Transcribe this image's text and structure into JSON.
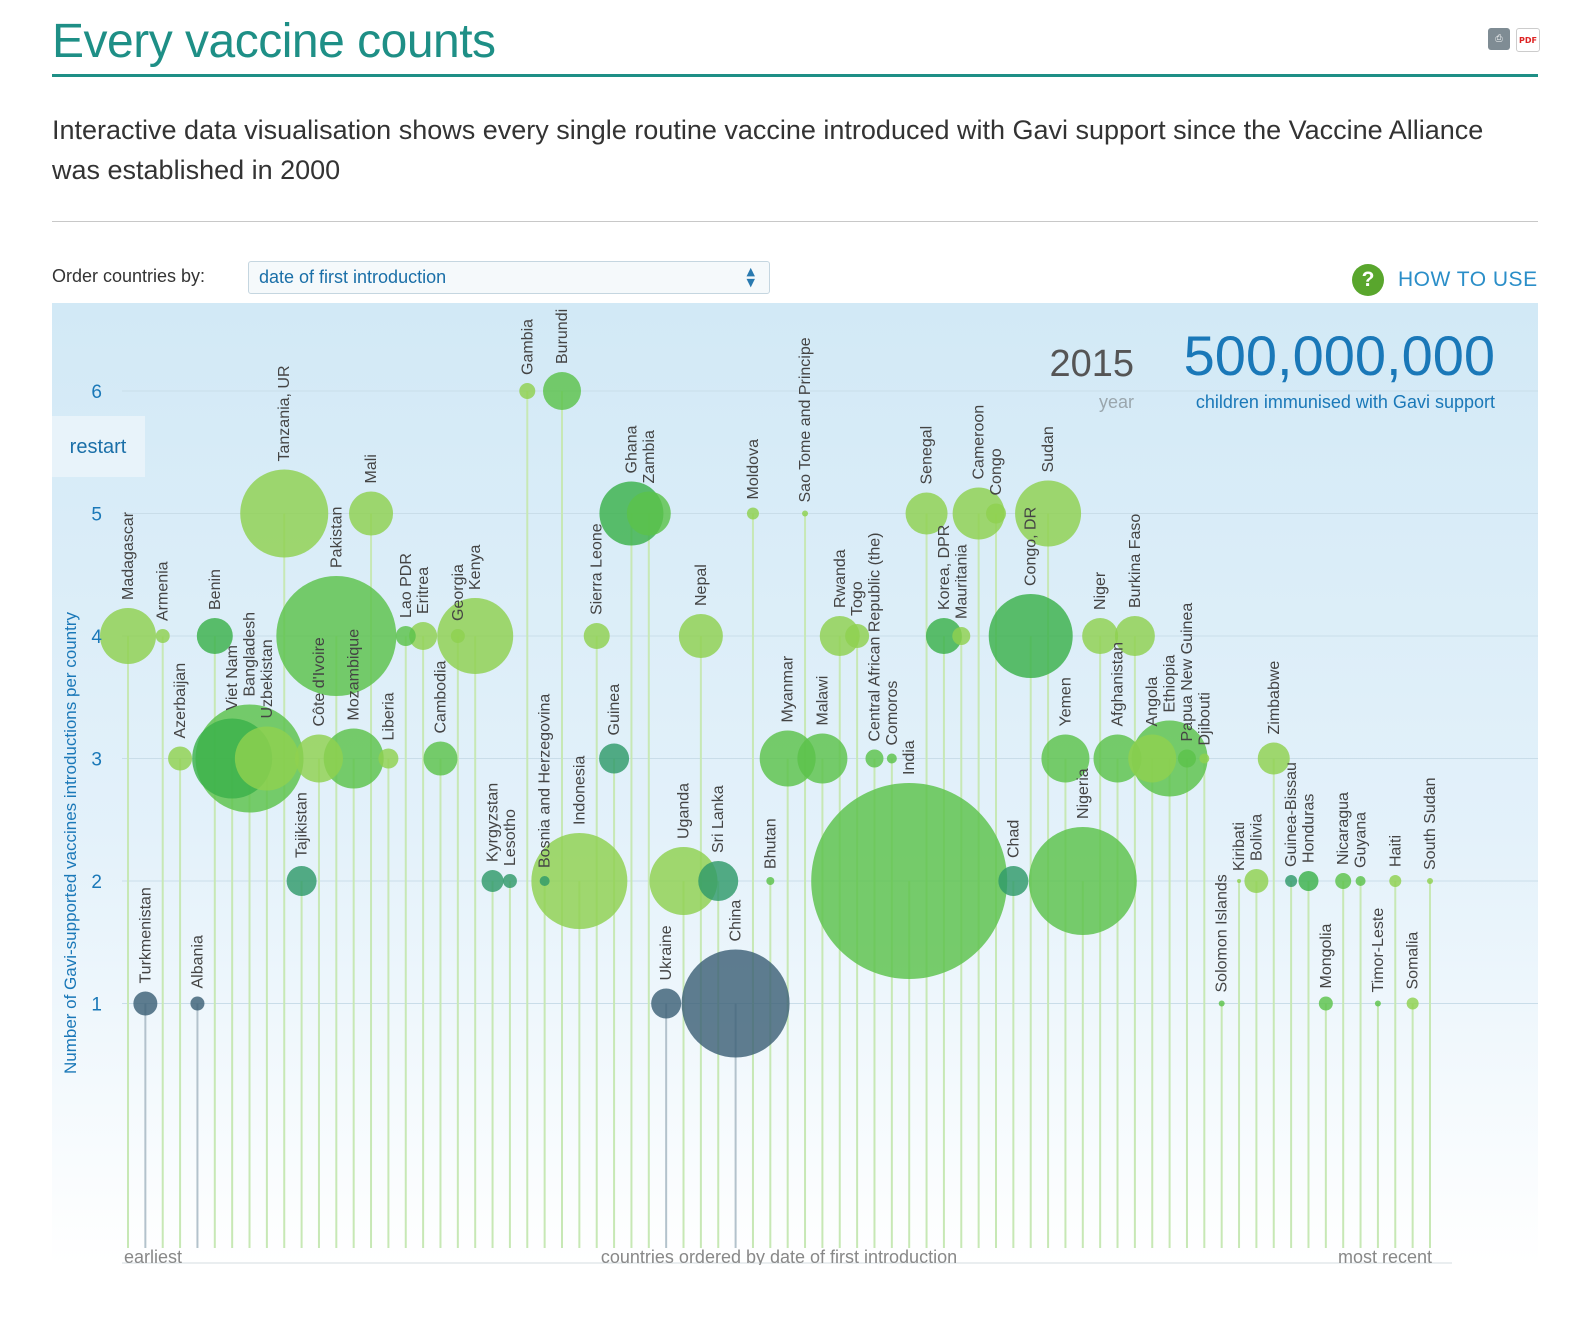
{
  "header": {
    "title": "Every vaccine counts",
    "subtitle": "Interactive data visualisation shows every single routine vaccine introduced with Gavi support since the Vaccine Alliance was established in 2000",
    "print_icon": "print-icon",
    "pdf_icon": "pdf-icon",
    "pdf_label": "PDF"
  },
  "controls": {
    "order_label": "Order countries by:",
    "order_value": "date of first introduction",
    "help_icon": "question-icon",
    "help_glyph": "?",
    "help_label": "HOW TO USE",
    "restart_label": "restart"
  },
  "stats": {
    "year": "2015",
    "year_label": "year",
    "children": "500,000,000",
    "children_label": "children immunised with Gavi support"
  },
  "colors": {
    "bg_top": "#d2e9f6",
    "bg_bottom": "#ffffff",
    "light_green": "#8fd14f",
    "mid_green": "#5cc24a",
    "green": "#3ab14a",
    "teal": "#2f9a6a",
    "dark": "#3d6076",
    "axis_text": "#1a78b8"
  },
  "chart_data": {
    "type": "scatter",
    "title": "",
    "ylabel": "Number of Gavi-supported vaccines introductions per country",
    "xlabel": "countries ordered by date of first introduction",
    "x_start_label": "earliest",
    "x_end_label": "most recent",
    "yticks": [
      "1",
      "2",
      "3",
      "4",
      "5",
      "6"
    ],
    "ylim": [
      0,
      6.8
    ],
    "points": [
      {
        "name": "Madagascar",
        "y": 4,
        "size": 28,
        "color": "light_green"
      },
      {
        "name": "Turkmenistan",
        "y": 1,
        "size": 12,
        "color": "dark"
      },
      {
        "name": "Armenia",
        "y": 4,
        "size": 7,
        "color": "light_green"
      },
      {
        "name": "Azerbaijan",
        "y": 3,
        "size": 12,
        "color": "light_green"
      },
      {
        "name": "Albania",
        "y": 1,
        "size": 7,
        "color": "dark"
      },
      {
        "name": "Benin",
        "y": 4,
        "size": 18,
        "color": "green"
      },
      {
        "name": "Viet Nam",
        "y": 3,
        "size": 40,
        "color": "green"
      },
      {
        "name": "Bangladesh",
        "y": 3,
        "size": 54,
        "color": "mid_green"
      },
      {
        "name": "Uzbekistan",
        "y": 3,
        "size": 32,
        "color": "light_green"
      },
      {
        "name": "Tanzania, UR",
        "y": 5,
        "size": 44,
        "color": "light_green"
      },
      {
        "name": "Tajikistan",
        "y": 2,
        "size": 15,
        "color": "teal"
      },
      {
        "name": "Côte d'Ivoire",
        "y": 3,
        "size": 24,
        "color": "light_green"
      },
      {
        "name": "Pakistan",
        "y": 4,
        "size": 60,
        "color": "mid_green"
      },
      {
        "name": "Mozambique",
        "y": 3,
        "size": 30,
        "color": "mid_green"
      },
      {
        "name": "Mali",
        "y": 5,
        "size": 22,
        "color": "light_green"
      },
      {
        "name": "Liberia",
        "y": 3,
        "size": 10,
        "color": "light_green"
      },
      {
        "name": "Lao PDR",
        "y": 4,
        "size": 10,
        "color": "mid_green"
      },
      {
        "name": "Eritrea",
        "y": 4,
        "size": 14,
        "color": "light_green"
      },
      {
        "name": "Cambodia",
        "y": 3,
        "size": 17,
        "color": "mid_green"
      },
      {
        "name": "Georgia",
        "y": 4,
        "size": 7,
        "color": "light_green"
      },
      {
        "name": "Kenya",
        "y": 4,
        "size": 38,
        "color": "light_green"
      },
      {
        "name": "Kyrgyzstan",
        "y": 2,
        "size": 11,
        "color": "teal"
      },
      {
        "name": "Lesotho",
        "y": 2,
        "size": 7,
        "color": "teal"
      },
      {
        "name": "Gambia",
        "y": 6,
        "size": 8,
        "color": "light_green"
      },
      {
        "name": "Bosnia and Herzegovina",
        "y": 2,
        "size": 5,
        "color": "teal"
      },
      {
        "name": "Burundi",
        "y": 6,
        "size": 19,
        "color": "mid_green"
      },
      {
        "name": "Indonesia",
        "y": 2,
        "size": 48,
        "color": "light_green"
      },
      {
        "name": "Sierra Leone",
        "y": 4,
        "size": 13,
        "color": "light_green"
      },
      {
        "name": "Guinea",
        "y": 3,
        "size": 15,
        "color": "teal"
      },
      {
        "name": "Ghana",
        "y": 5,
        "size": 32,
        "color": "green"
      },
      {
        "name": "Zambia",
        "y": 5,
        "size": 22,
        "color": "mid_green"
      },
      {
        "name": "Ukraine",
        "y": 1,
        "size": 15,
        "color": "dark"
      },
      {
        "name": "Uganda",
        "y": 2,
        "size": 34,
        "color": "light_green"
      },
      {
        "name": "Nepal",
        "y": 4,
        "size": 22,
        "color": "light_green"
      },
      {
        "name": "Sri Lanka",
        "y": 2,
        "size": 20,
        "color": "teal"
      },
      {
        "name": "China",
        "y": 1,
        "size": 54,
        "color": "dark"
      },
      {
        "name": "Moldova",
        "y": 5,
        "size": 6,
        "color": "light_green"
      },
      {
        "name": "Bhutan",
        "y": 2,
        "size": 4,
        "color": "mid_green"
      },
      {
        "name": "Myanmar",
        "y": 3,
        "size": 28,
        "color": "mid_green"
      },
      {
        "name": "Sao Tome and Principe",
        "y": 5,
        "size": 3,
        "color": "light_green"
      },
      {
        "name": "Malawi",
        "y": 3,
        "size": 25,
        "color": "mid_green"
      },
      {
        "name": "Rwanda",
        "y": 4,
        "size": 20,
        "color": "light_green"
      },
      {
        "name": "Togo",
        "y": 4,
        "size": 12,
        "color": "light_green"
      },
      {
        "name": "Central African Republic (the)",
        "y": 3,
        "size": 9,
        "color": "mid_green"
      },
      {
        "name": "Comoros",
        "y": 3,
        "size": 5,
        "color": "mid_green"
      },
      {
        "name": "India",
        "y": 2,
        "size": 98,
        "color": "mid_green"
      },
      {
        "name": "Senegal",
        "y": 5,
        "size": 21,
        "color": "light_green"
      },
      {
        "name": "Korea, DPR",
        "y": 4,
        "size": 18,
        "color": "green"
      },
      {
        "name": "Mauritania",
        "y": 4,
        "size": 9,
        "color": "light_green"
      },
      {
        "name": "Cameroon",
        "y": 5,
        "size": 26,
        "color": "light_green"
      },
      {
        "name": "Congo",
        "y": 5,
        "size": 10,
        "color": "light_green"
      },
      {
        "name": "Chad",
        "y": 2,
        "size": 15,
        "color": "teal"
      },
      {
        "name": "Congo, DR",
        "y": 4,
        "size": 42,
        "color": "green"
      },
      {
        "name": "Sudan",
        "y": 5,
        "size": 33,
        "color": "light_green"
      },
      {
        "name": "Yemen",
        "y": 3,
        "size": 24,
        "color": "mid_green"
      },
      {
        "name": "Nigeria",
        "y": 2,
        "size": 54,
        "color": "mid_green"
      },
      {
        "name": "Niger",
        "y": 4,
        "size": 18,
        "color": "light_green"
      },
      {
        "name": "Afghanistan",
        "y": 3,
        "size": 24,
        "color": "mid_green"
      },
      {
        "name": "Burkina Faso",
        "y": 4,
        "size": 20,
        "color": "light_green"
      },
      {
        "name": "Angola",
        "y": 3,
        "size": 24,
        "color": "light_green"
      },
      {
        "name": "Ethiopia",
        "y": 3,
        "size": 38,
        "color": "mid_green"
      },
      {
        "name": "Papua New Guinea",
        "y": 3,
        "size": 9,
        "color": "mid_green"
      },
      {
        "name": "Djibouti",
        "y": 3,
        "size": 5,
        "color": "light_green"
      },
      {
        "name": "Solomon Islands",
        "y": 1,
        "size": 3,
        "color": "mid_green"
      },
      {
        "name": "Kiribati",
        "y": 2,
        "size": 2,
        "color": "light_green"
      },
      {
        "name": "Bolivia",
        "y": 2,
        "size": 12,
        "color": "light_green"
      },
      {
        "name": "Zimbabwe",
        "y": 3,
        "size": 16,
        "color": "light_green"
      },
      {
        "name": "Guinea-Bissau",
        "y": 2,
        "size": 6,
        "color": "teal"
      },
      {
        "name": "Honduras",
        "y": 2,
        "size": 10,
        "color": "green"
      },
      {
        "name": "Mongolia",
        "y": 1,
        "size": 7,
        "color": "mid_green"
      },
      {
        "name": "Nicaragua",
        "y": 2,
        "size": 8,
        "color": "mid_green"
      },
      {
        "name": "Guyana",
        "y": 2,
        "size": 5,
        "color": "mid_green"
      },
      {
        "name": "Timor-Leste",
        "y": 1,
        "size": 3,
        "color": "mid_green"
      },
      {
        "name": "Haiti",
        "y": 2,
        "size": 6,
        "color": "light_green"
      },
      {
        "name": "Somalia",
        "y": 1,
        "size": 6,
        "color": "light_green"
      },
      {
        "name": "South Sudan",
        "y": 2,
        "size": 3,
        "color": "light_green"
      }
    ]
  }
}
